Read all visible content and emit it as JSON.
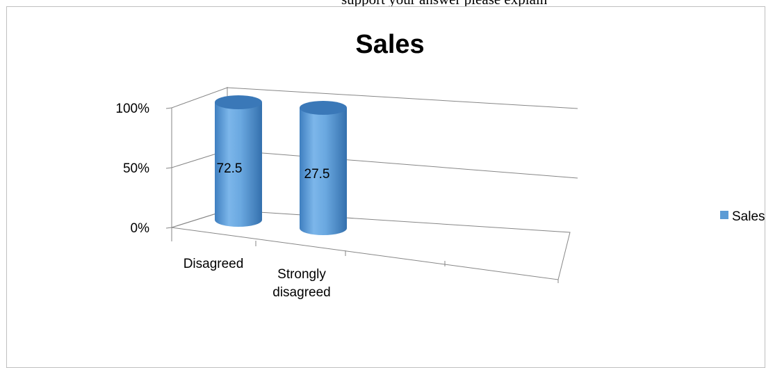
{
  "page": {
    "top_text": "support your answer please explain"
  },
  "chart_data": {
    "type": "bar",
    "style": "3d-cylinder",
    "title": "Sales",
    "categories": [
      "Disagreed",
      "Strongly disagreed"
    ],
    "category_label_lines": [
      [
        "Disagreed"
      ],
      [
        "Strongly",
        "disagreed"
      ]
    ],
    "series": [
      {
        "name": "Sales",
        "values": [
          72.5,
          27.5
        ],
        "data_labels": [
          "72.5",
          "27.5"
        ]
      }
    ],
    "y_ticks": [
      {
        "value": 0,
        "label": "0%"
      },
      {
        "value": 50,
        "label": "50%"
      },
      {
        "value": 100,
        "label": "100%"
      }
    ],
    "ylim": [
      0,
      100
    ],
    "stacked": "percent",
    "grid": true,
    "legend_position": "right",
    "colors": {
      "bar_body": "#5b9bd5",
      "bar_top": "#3a78b8",
      "grid": "#868686",
      "text": "#000000"
    }
  }
}
